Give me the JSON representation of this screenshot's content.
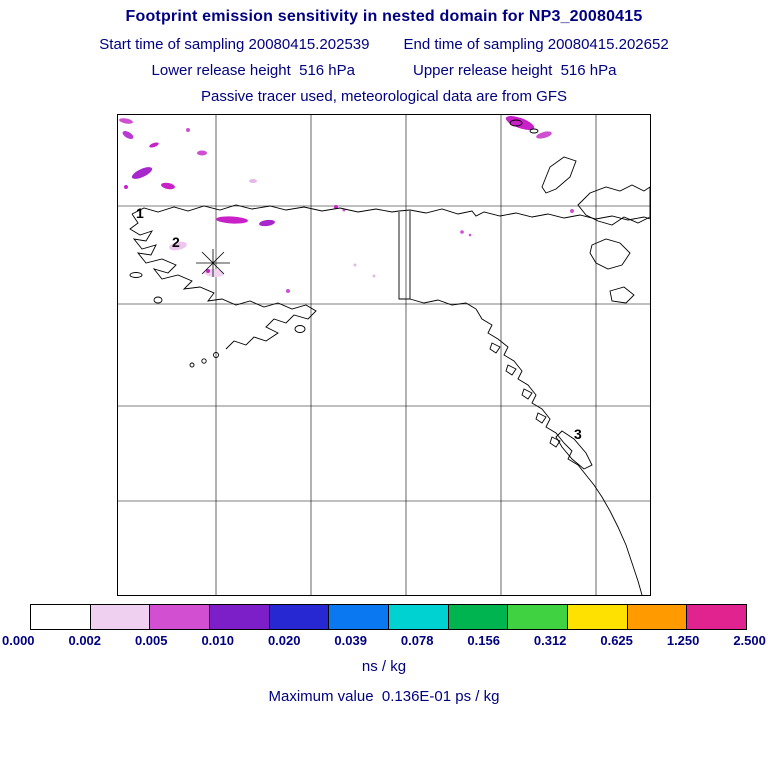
{
  "header": {
    "title": "Footprint emission sensitivity in nested domain for NP3_20080415",
    "start_time": "Start time of sampling 20080415.202539",
    "end_time": "End time of sampling 20080415.202652",
    "lower_release": "Lower release height  516 hPa",
    "upper_release": "Upper release height  516 hPa",
    "tracer_line": "Passive tracer used, meteorological data are from GFS"
  },
  "map": {
    "markers": [
      {
        "label": "1"
      },
      {
        "label": "2"
      },
      {
        "label": "3"
      }
    ],
    "release_marker": "asterisk-icon"
  },
  "colorbar": {
    "levels": [
      "0.000",
      "0.002",
      "0.005",
      "0.010",
      "0.020",
      "0.039",
      "0.078",
      "0.156",
      "0.312",
      "0.625",
      "1.250",
      "2.500"
    ],
    "colors": [
      "#ffffff",
      "#f0d0f0",
      "#d24fd2",
      "#7d1fc8",
      "#2828d2",
      "#0a78f0",
      "#00d2d2",
      "#00b450",
      "#41d241",
      "#ffe100",
      "#ff9b00",
      "#e12390"
    ],
    "units": "ns / kg"
  },
  "footer": {
    "max_value": "Maximum value  0.136E-01 ps / kg"
  },
  "text_color": "#000080",
  "chart_data": {
    "type": "heatmap",
    "title": "Footprint emission sensitivity in nested domain for NP3_20080415",
    "field": "footprint emission sensitivity",
    "domain_region": "Nested domain over Alaska and northwestern North America (coastlines with lat/lon grid)",
    "receptor_id": "NP3_20080415",
    "sampling_start": "20080415.202539",
    "sampling_end": "20080415.202652",
    "release_height_lower_hPa": 516,
    "release_height_upper_hPa": 516,
    "tracer": "passive",
    "meteorology": "GFS",
    "units": "ns / kg",
    "max_value": "0.136E-01 ps / kg",
    "colorbar_levels": [
      0.0,
      0.002,
      0.005,
      0.01,
      0.02,
      0.039,
      0.078,
      0.156,
      0.312,
      0.625,
      1.25,
      2.5
    ],
    "colorbar_colors": [
      "#ffffff",
      "#f0d0f0",
      "#d24fd2",
      "#7d1fc8",
      "#2828d2",
      "#0a78f0",
      "#00d2d2",
      "#00b450",
      "#41d241",
      "#ffe100",
      "#ff9b00",
      "#e12390"
    ],
    "markers": [
      "1",
      "2",
      "3"
    ],
    "legend_position": "horizontal colorbar below map",
    "grid": true,
    "notes": "Sensitivity field appears as sparse magenta/violet patches concentrated in the northwest (upper-left) of the domain near the release point marked by an asterisk in western Alaska; values mostly in the 0.002-0.020 ns/kg range."
  }
}
